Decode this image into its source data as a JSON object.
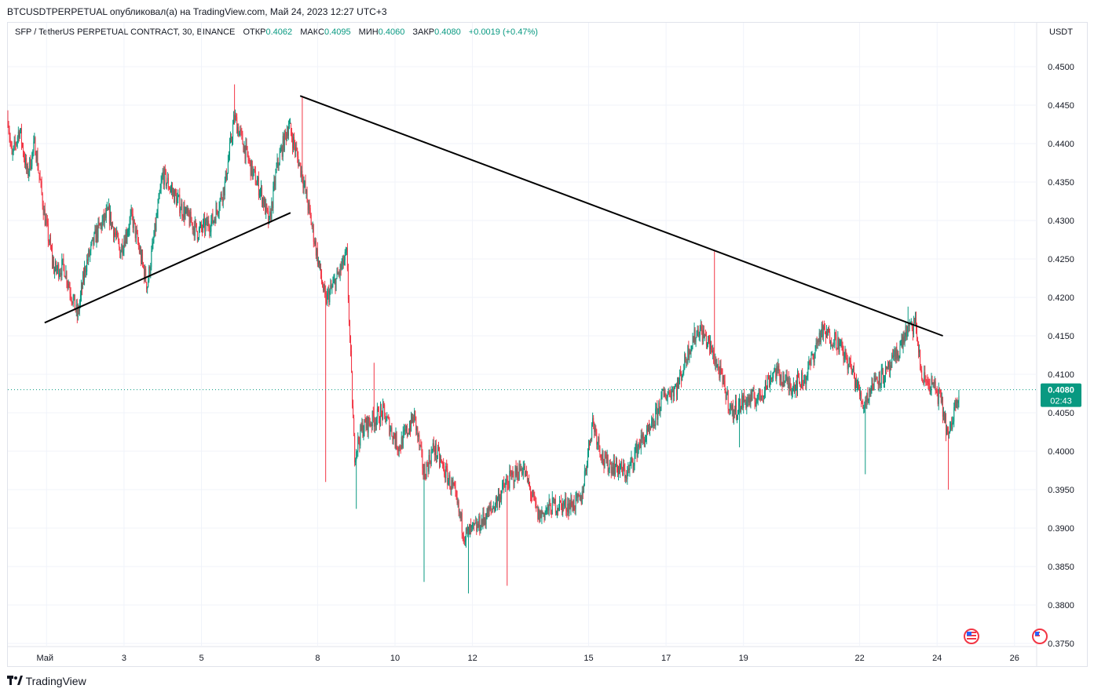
{
  "header": {
    "published_line": "BTCUSDTPERPETUAL опубликовал(а) на TradingView.com, Май 24, 2023 12:27 UTC+3"
  },
  "legend": {
    "symbol": "SFP / TetherUS PERPETUAL CONTRACT, 30, BINANCE",
    "open_label": "ОТКР",
    "open_value": "0.4062",
    "high_label": "МАКС",
    "high_value": "0.4095",
    "low_label": "МИН",
    "low_value": "0.4060",
    "close_label": "ЗАКР",
    "close_value": "0.4080",
    "change": "+0.0019 (+0.47%)"
  },
  "price_axis": {
    "currency": "USDT",
    "last_price_label": "0.4080",
    "countdown_label": "02:43"
  },
  "footer": {
    "brand": "TradingView"
  },
  "colors": {
    "up": "#089981",
    "down": "#f23645",
    "last_price_bg": "#089981",
    "trendline": "#000000"
  },
  "chart_data": {
    "type": "candlestick",
    "title": "SFP / TetherUS PERPETUAL CONTRACT, 30, BINANCE",
    "ylabel": "USDT",
    "ylim": [
      0.3745,
      0.4545
    ],
    "yticks": [
      "0.4500",
      "0.4450",
      "0.4400",
      "0.4350",
      "0.4300",
      "0.4250",
      "0.4200",
      "0.4150",
      "0.4100",
      "0.4050",
      "0.4000",
      "0.3950",
      "0.3900",
      "0.3850",
      "0.3800",
      "0.3750"
    ],
    "x_tick_labels": [
      {
        "label": "Май",
        "day": 1
      },
      {
        "label": "3",
        "day": 3
      },
      {
        "label": "5",
        "day": 5
      },
      {
        "label": "8",
        "day": 8
      },
      {
        "label": "10",
        "day": 10
      },
      {
        "label": "12",
        "day": 12
      },
      {
        "label": "15",
        "day": 15
      },
      {
        "label": "17",
        "day": 17
      },
      {
        "label": "19",
        "day": 19
      },
      {
        "label": "22",
        "day": 22
      },
      {
        "label": "24",
        "day": 24
      },
      {
        "label": "26",
        "day": 26
      }
    ],
    "last_price": 0.408,
    "price_path": [
      [
        0.0,
        0.4435
      ],
      [
        0.1,
        0.438
      ],
      [
        0.3,
        0.442
      ],
      [
        0.5,
        0.436
      ],
      [
        0.7,
        0.44
      ],
      [
        0.95,
        0.4305
      ],
      [
        1.2,
        0.4235
      ],
      [
        1.45,
        0.424
      ],
      [
        1.8,
        0.4175
      ],
      [
        2.0,
        0.424
      ],
      [
        2.3,
        0.4285
      ],
      [
        2.6,
        0.431
      ],
      [
        2.9,
        0.426
      ],
      [
        3.2,
        0.4305
      ],
      [
        3.6,
        0.4215
      ],
      [
        4.0,
        0.436
      ],
      [
        4.5,
        0.4315
      ],
      [
        4.9,
        0.4285
      ],
      [
        5.3,
        0.43
      ],
      [
        5.6,
        0.4345
      ],
      [
        5.85,
        0.4435
      ],
      [
        6.3,
        0.4365
      ],
      [
        6.55,
        0.4335
      ],
      [
        6.75,
        0.4295
      ],
      [
        6.95,
        0.437
      ],
      [
        7.25,
        0.4425
      ],
      [
        7.6,
        0.436
      ],
      [
        7.9,
        0.428
      ],
      [
        8.2,
        0.4195
      ],
      [
        8.5,
        0.4225
      ],
      [
        8.75,
        0.4255
      ],
      [
        8.95,
        0.3995
      ],
      [
        9.15,
        0.403
      ],
      [
        9.4,
        0.404
      ],
      [
        9.7,
        0.405
      ],
      [
        10.1,
        0.4005
      ],
      [
        10.5,
        0.4045
      ],
      [
        10.75,
        0.397
      ],
      [
        11.0,
        0.4005
      ],
      [
        11.5,
        0.395
      ],
      [
        11.8,
        0.389
      ],
      [
        12.1,
        0.39
      ],
      [
        12.5,
        0.3925
      ],
      [
        12.9,
        0.396
      ],
      [
        13.3,
        0.398
      ],
      [
        13.7,
        0.3915
      ],
      [
        14.1,
        0.393
      ],
      [
        14.5,
        0.393
      ],
      [
        14.8,
        0.3935
      ],
      [
        15.1,
        0.404
      ],
      [
        15.4,
        0.3985
      ],
      [
        15.7,
        0.398
      ],
      [
        16.0,
        0.397
      ],
      [
        16.3,
        0.401
      ],
      [
        16.6,
        0.4025
      ],
      [
        16.9,
        0.407
      ],
      [
        17.3,
        0.4085
      ],
      [
        17.6,
        0.4135
      ],
      [
        17.85,
        0.416
      ],
      [
        18.1,
        0.414
      ],
      [
        18.4,
        0.41
      ],
      [
        18.7,
        0.405
      ],
      [
        19.0,
        0.4065
      ],
      [
        19.4,
        0.407
      ],
      [
        19.8,
        0.4105
      ],
      [
        20.2,
        0.4085
      ],
      [
        20.6,
        0.4095
      ],
      [
        21.0,
        0.4155
      ],
      [
        21.4,
        0.4145
      ],
      [
        21.8,
        0.4105
      ],
      [
        22.1,
        0.406
      ],
      [
        22.4,
        0.4095
      ],
      [
        22.7,
        0.41
      ],
      [
        23.0,
        0.413
      ],
      [
        23.2,
        0.4155
      ],
      [
        23.45,
        0.4165
      ],
      [
        23.6,
        0.4095
      ],
      [
        23.9,
        0.4085
      ],
      [
        24.1,
        0.4065
      ],
      [
        24.3,
        0.4015
      ],
      [
        24.5,
        0.407
      ],
      [
        24.58,
        0.408
      ]
    ],
    "candle_extremes": [
      {
        "day": 5.85,
        "high": 0.4477
      },
      {
        "day": 7.6,
        "high": 0.4462
      },
      {
        "day": 8.2,
        "low": 0.396
      },
      {
        "day": 9.0,
        "low": 0.3925
      },
      {
        "day": 9.45,
        "high": 0.4115
      },
      {
        "day": 10.75,
        "low": 0.383
      },
      {
        "day": 11.9,
        "low": 0.3815
      },
      {
        "day": 12.9,
        "low": 0.3825
      },
      {
        "day": 18.25,
        "high": 0.426
      },
      {
        "day": 18.9,
        "low": 0.4005
      },
      {
        "day": 22.15,
        "low": 0.397
      },
      {
        "day": 23.25,
        "high": 0.4188
      },
      {
        "day": 24.3,
        "low": 0.395
      }
    ],
    "trendlines": [
      {
        "from": [
          0.95,
          0.4167
        ],
        "to": [
          7.3,
          0.431
        ]
      },
      {
        "from": [
          7.55,
          0.4462
        ],
        "to": [
          24.15,
          0.415
        ]
      }
    ]
  }
}
